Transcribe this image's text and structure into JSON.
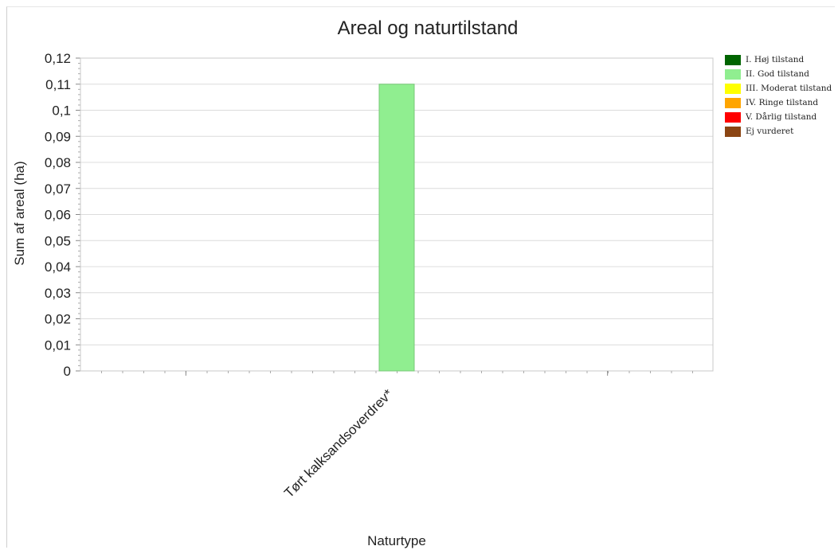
{
  "chart_data": {
    "type": "bar",
    "title": "Areal og naturtilstand",
    "xlabel": "Naturtype",
    "ylabel": "Sum af areal (ha)",
    "categories": [
      "Tørt kalksandsoverdrev*"
    ],
    "series": [
      {
        "name": "I. Høj tilstand",
        "color": "#006400",
        "values": [
          0
        ]
      },
      {
        "name": "II. God tilstand",
        "color": "#90ee90",
        "values": [
          0.11
        ]
      },
      {
        "name": "III. Moderat tilstand",
        "color": "#ffff00",
        "values": [
          0
        ]
      },
      {
        "name": "IV. Ringe tilstand",
        "color": "#ffa500",
        "values": [
          0
        ]
      },
      {
        "name": "V. Dårlig tilstand",
        "color": "#ff0000",
        "values": [
          0
        ]
      },
      {
        "name": "Ej vurderet",
        "color": "#8b4513",
        "values": [
          0
        ]
      }
    ],
    "ylim": [
      0,
      0.12
    ],
    "yticks": [
      "0",
      "0,01",
      "0,02",
      "0,03",
      "0,04",
      "0,05",
      "0,06",
      "0,07",
      "0,08",
      "0,09",
      "0,1",
      "0,11",
      "0,12"
    ],
    "grid": true,
    "legend_position": "right"
  }
}
